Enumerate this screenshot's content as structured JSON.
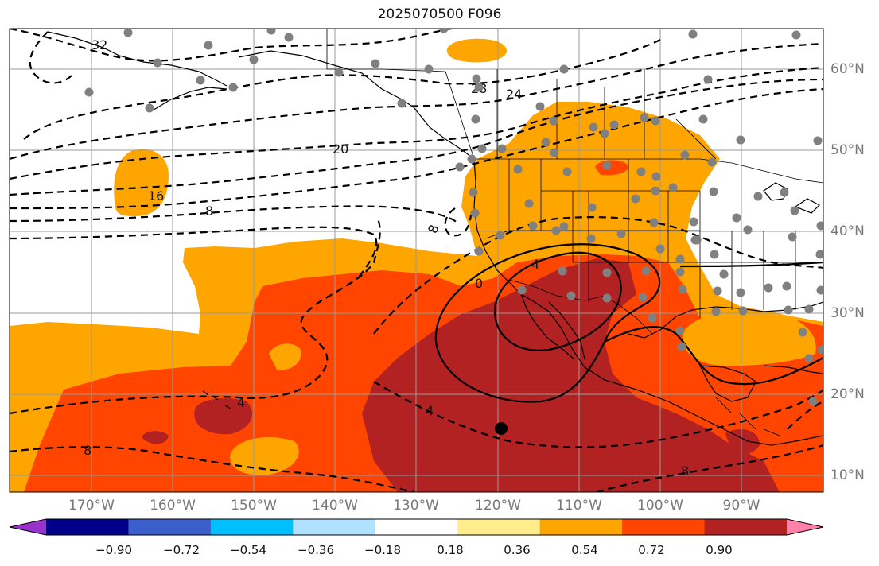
{
  "title": "2025070500 F096",
  "longitude_labels": [
    "170°W",
    "160°W",
    "150°W",
    "140°W",
    "130°W",
    "120°W",
    "110°W",
    "100°W",
    "90°W"
  ],
  "latitude_labels": [
    "60°N",
    "50°N",
    "40°N",
    "30°N",
    "20°N",
    "10°N"
  ],
  "colorbar": {
    "colors": [
      "#9932cc",
      "#00008b",
      "#3a5fcd",
      "#00bfff",
      "#b0e2ff",
      "#ffffff",
      "#ffec8b",
      "#ffa500",
      "#ff4500",
      "#b22222",
      "#ff82ab"
    ],
    "tick_labels": [
      "−0.90",
      "−0.72",
      "−0.54",
      "−0.36",
      "−0.18",
      "0.18",
      "0.36",
      "0.54",
      "0.72",
      "0.90"
    ]
  },
  "contour_labels": {
    "neg32": "32",
    "neg28": "28",
    "neg24": "24",
    "neg20": "20",
    "neg16": "16",
    "neg8a": "8",
    "neg8b": "8",
    "neg8c": "8",
    "neg8d": "8",
    "neg4a": "4",
    "neg4b": "4",
    "zero": "0",
    "pos4": "4"
  },
  "fill_colors": {
    "level_036": "#ffa500",
    "level_054": "#ff4500",
    "level_072": "#b22222"
  },
  "marker_color": "#808080",
  "center_marker_color": "#000000"
}
